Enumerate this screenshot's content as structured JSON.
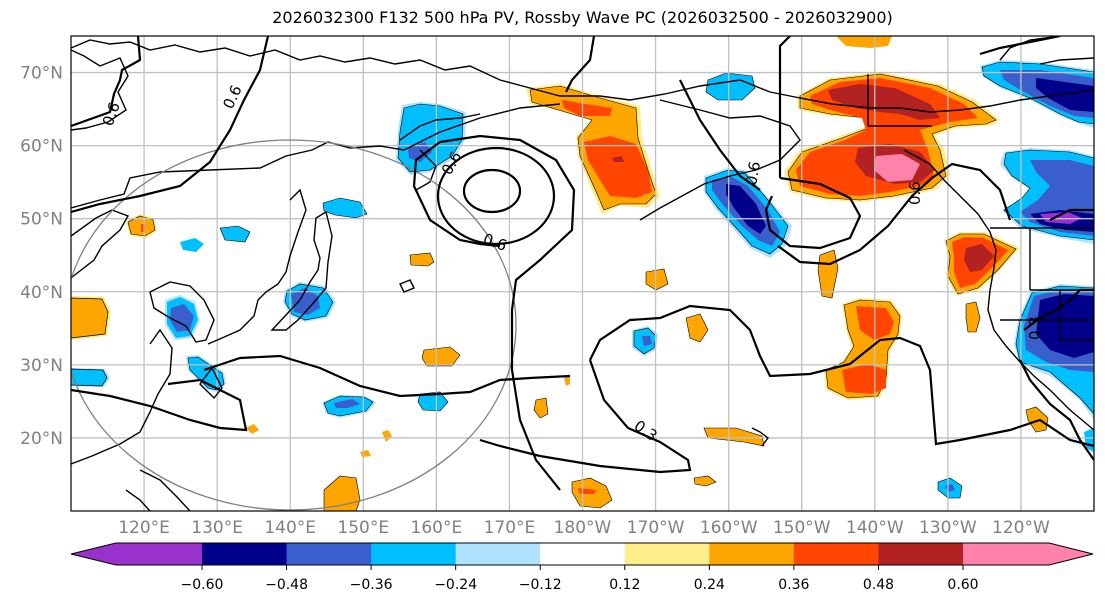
{
  "title": "2026032300 F132 500 hPa PV, Rossby Wave PC (2026032500 - 2026032900)",
  "map": {
    "projection": "PlateCarree",
    "lon_range": [
      110,
      250
    ],
    "lat_range": [
      10,
      75
    ],
    "lat_ticks": [
      "70°N",
      "60°N",
      "50°N",
      "40°N",
      "30°N",
      "20°N"
    ],
    "lat_values": [
      70,
      60,
      50,
      40,
      30,
      20
    ],
    "lon_ticks": [
      "120°E",
      "130°E",
      "140°E",
      "150°E",
      "160°E",
      "170°E",
      "180°W",
      "170°W",
      "160°W",
      "150°W",
      "140°W",
      "130°W",
      "120°W"
    ],
    "lon_values": [
      120,
      130,
      140,
      150,
      160,
      170,
      180,
      190,
      200,
      210,
      220,
      230,
      240
    ],
    "gridline_color": "#c0c0c0",
    "coastline_color": "#000000",
    "circle_color": "#808080",
    "contour_labels": [
      "0.6",
      "0.6",
      "0.6",
      "0.6",
      "0.3",
      "0.6",
      "0.6",
      "0.3"
    ]
  },
  "colorbar": {
    "levels": [
      "−0.60",
      "−0.48",
      "−0.36",
      "−0.24",
      "−0.12",
      "0.12",
      "0.24",
      "0.36",
      "0.48",
      "0.60"
    ],
    "colors": [
      "#9932cc",
      "#00008b",
      "#3a5fcd",
      "#00bfff",
      "#b0e2ff",
      "#ffffff",
      "#ffec8b",
      "#ffa500",
      "#ff4500",
      "#b22222",
      "#ff82ab"
    ],
    "extend": "both"
  }
}
